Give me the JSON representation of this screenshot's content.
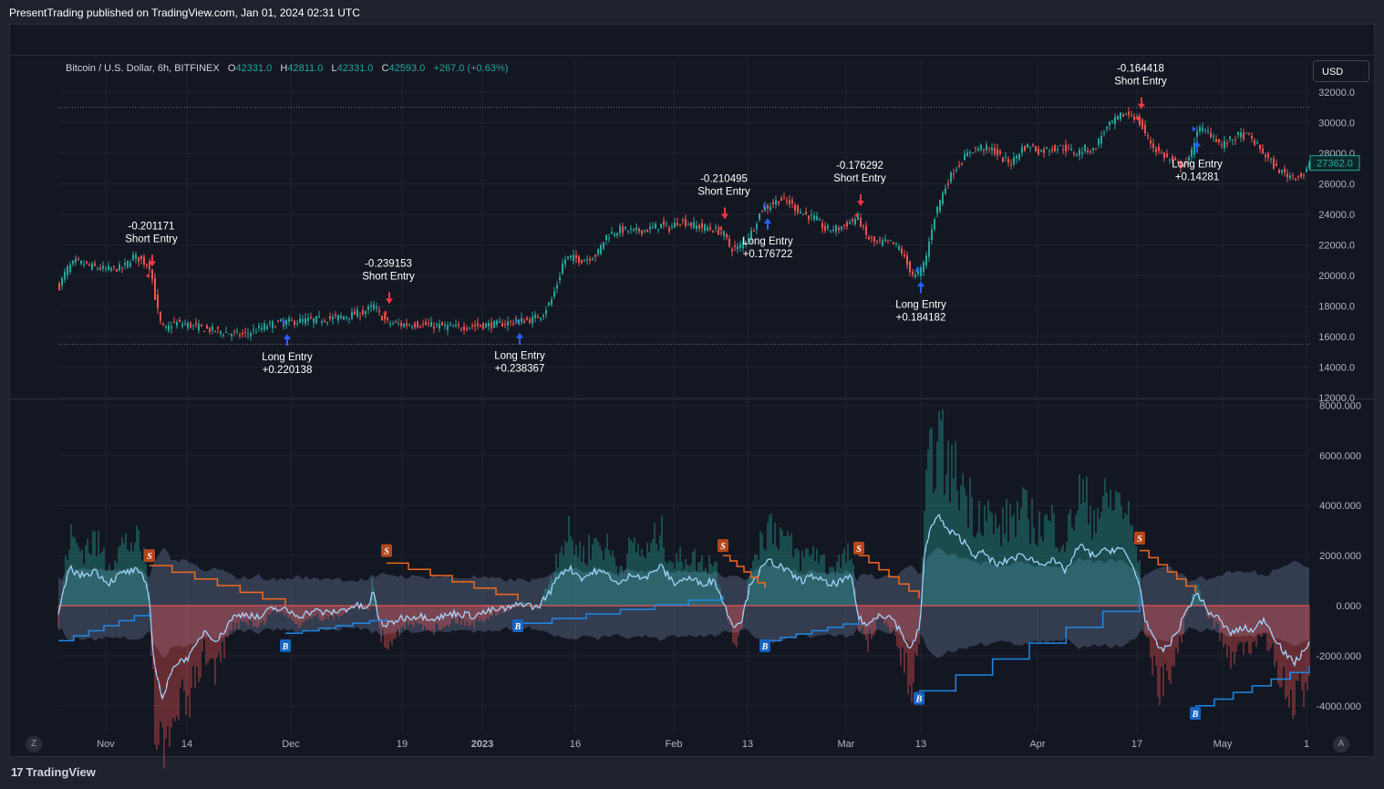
{
  "header": {
    "publish_line": "PresentTrading published on TradingView.com, Jan 01, 2024 02:31 UTC"
  },
  "legend": {
    "symbol": "Bitcoin / U.S. Dollar, 6h, BITFINEX",
    "open_label": "O",
    "open": "42331.0",
    "high_label": "H",
    "high": "42811.0",
    "low_label": "L",
    "low": "42331.0",
    "close_label": "C",
    "close": "42593.0",
    "change": "+267.0 (+0.63%)"
  },
  "currency_button": "USD",
  "footer": {
    "logo_text": "TradingView",
    "zoom_button": "Z",
    "auto_button": "A"
  },
  "colors": {
    "background": "#131722",
    "up": "#26a69a",
    "down": "#ef5350",
    "long_arrow": "#2962ff",
    "short_arrow": "#f23645",
    "price_tag": "#26a69a",
    "oscillator_line": "#a3d0f5",
    "negative_line": "#ffcc80",
    "upper_trail": "#f06a1e",
    "lower_trail": "#1e88e5"
  },
  "chart_data": [
    {
      "type": "candlestick",
      "title": "Bitcoin / U.S. Dollar, 6h, BITFINEX",
      "x_tick_labels": [
        "Nov",
        "14",
        "Dec",
        "19",
        "2023",
        "16",
        "Feb",
        "13",
        "Mar",
        "13",
        "Apr",
        "17",
        "May",
        "1"
      ],
      "y_tick_labels": [
        "32000.0",
        "30000.0",
        "28000.0",
        "26000.0",
        "24000.0",
        "22000.0",
        "20000.0",
        "18000.0",
        "16000.0",
        "14000.0",
        "12000.0"
      ],
      "ylim": [
        12000,
        33000
      ],
      "last_price_label": "27362.0",
      "price_path": [
        [
          0,
          19300
        ],
        [
          8,
          20400
        ],
        [
          18,
          20900
        ],
        [
          35,
          20600
        ],
        [
          50,
          20400
        ],
        [
          70,
          20500
        ],
        [
          82,
          21300
        ],
        [
          92,
          20900
        ],
        [
          100,
          20600
        ],
        [
          104,
          18900
        ],
        [
          110,
          17000
        ],
        [
          116,
          16400
        ],
        [
          125,
          16900
        ],
        [
          140,
          16800
        ],
        [
          160,
          16500
        ],
        [
          180,
          16300
        ],
        [
          200,
          16100
        ],
        [
          215,
          16400
        ],
        [
          228,
          16700
        ],
        [
          240,
          16900
        ],
        [
          260,
          17000
        ],
        [
          280,
          17100
        ],
        [
          300,
          17200
        ],
        [
          318,
          17400
        ],
        [
          334,
          17600
        ],
        [
          345,
          18000
        ],
        [
          352,
          17400
        ],
        [
          360,
          16900
        ],
        [
          375,
          16800
        ],
        [
          395,
          16800
        ],
        [
          415,
          16700
        ],
        [
          435,
          16600
        ],
        [
          455,
          16700
        ],
        [
          480,
          16800
        ],
        [
          500,
          17000
        ],
        [
          518,
          17100
        ],
        [
          530,
          17500
        ],
        [
          540,
          18400
        ],
        [
          548,
          19800
        ],
        [
          553,
          21000
        ],
        [
          560,
          21200
        ],
        [
          575,
          21000
        ],
        [
          590,
          21400
        ],
        [
          600,
          22600
        ],
        [
          615,
          23000
        ],
        [
          630,
          22900
        ],
        [
          645,
          23000
        ],
        [
          660,
          23300
        ],
        [
          670,
          23100
        ],
        [
          680,
          23600
        ],
        [
          690,
          23400
        ],
        [
          700,
          23200
        ],
        [
          712,
          23100
        ],
        [
          728,
          22800
        ],
        [
          736,
          21800
        ],
        [
          745,
          21800
        ],
        [
          752,
          22300
        ],
        [
          760,
          22900
        ],
        [
          770,
          24300
        ],
        [
          780,
          24600
        ],
        [
          790,
          25000
        ],
        [
          800,
          24800
        ],
        [
          810,
          24300
        ],
        [
          818,
          24000
        ],
        [
          830,
          23700
        ],
        [
          840,
          23000
        ],
        [
          855,
          23100
        ],
        [
          868,
          23500
        ],
        [
          876,
          23800
        ],
        [
          886,
          22500
        ],
        [
          896,
          22100
        ],
        [
          910,
          22200
        ],
        [
          922,
          21800
        ],
        [
          930,
          20700
        ],
        [
          938,
          19900
        ],
        [
          946,
          20400
        ],
        [
          952,
          21500
        ],
        [
          958,
          23500
        ],
        [
          965,
          24800
        ],
        [
          972,
          25800
        ],
        [
          980,
          26800
        ],
        [
          990,
          27500
        ],
        [
          1000,
          28200
        ],
        [
          1012,
          28400
        ],
        [
          1025,
          28200
        ],
        [
          1035,
          27600
        ],
        [
          1045,
          27400
        ],
        [
          1055,
          28300
        ],
        [
          1065,
          28500
        ],
        [
          1075,
          28100
        ],
        [
          1085,
          28300
        ],
        [
          1100,
          28400
        ],
        [
          1115,
          28000
        ],
        [
          1125,
          28300
        ],
        [
          1135,
          28200
        ],
        [
          1145,
          29400
        ],
        [
          1155,
          30000
        ],
        [
          1165,
          30500
        ],
        [
          1175,
          30600
        ],
        [
          1183,
          30200
        ],
        [
          1190,
          29400
        ],
        [
          1200,
          28400
        ],
        [
          1210,
          27900
        ],
        [
          1220,
          27500
        ],
        [
          1230,
          27200
        ],
        [
          1240,
          27600
        ],
        [
          1248,
          29600
        ],
        [
          1255,
          29500
        ],
        [
          1265,
          29200
        ],
        [
          1275,
          28500
        ],
        [
          1285,
          28900
        ],
        [
          1295,
          29200
        ],
        [
          1305,
          29100
        ],
        [
          1315,
          28400
        ],
        [
          1325,
          27700
        ],
        [
          1335,
          27000
        ],
        [
          1345,
          26600
        ],
        [
          1355,
          26500
        ],
        [
          1365,
          26600
        ],
        [
          1372,
          27300
        ]
      ],
      "annotations": [
        {
          "type": "short",
          "date_label": "Nov 08",
          "value": "-0.201171",
          "label": "Short Entry"
        },
        {
          "type": "long",
          "date_label": "Dec 01",
          "value": "+0.220138",
          "label": "Long Entry"
        },
        {
          "type": "short",
          "date_label": "Dec 16",
          "value": "-0.239153",
          "label": "Short Entry"
        },
        {
          "type": "long",
          "date_label": "Jan 08",
          "value": "+0.238367",
          "label": "Long Entry"
        },
        {
          "type": "short",
          "date_label": "Feb 09",
          "value": "-0.210495",
          "label": "Short Entry"
        },
        {
          "type": "long",
          "date_label": "Feb 14",
          "value": "+0.176722",
          "label": "Long Entry"
        },
        {
          "type": "short",
          "date_label": "Mar 02",
          "value": "-0.176292",
          "label": "Short Entry"
        },
        {
          "type": "long",
          "date_label": "Mar 12",
          "value": "+0.184182",
          "label": "Long Entry"
        },
        {
          "type": "short",
          "date_label": "Apr 18",
          "value": "-0.164418",
          "label": "Short Entry"
        },
        {
          "type": "long",
          "date_label": "Apr 24",
          "value": "+0.14281",
          "label": "Long Entry"
        }
      ],
      "range_bounds": [
        31000,
        15500
      ]
    },
    {
      "type": "area",
      "y_tick_labels": [
        "8000.000",
        "6000.000",
        "4000.000",
        "2000.000",
        "0.000",
        "-2000.000",
        "-4000.000"
      ],
      "ylim": [
        -5000,
        8000
      ],
      "signal_badges": [
        {
          "kind": "S",
          "date_label": "Nov 08",
          "value": 2000
        },
        {
          "kind": "B",
          "date_label": "Dec 01",
          "value": -1600
        },
        {
          "kind": "S",
          "date_label": "Dec 16",
          "value": 2200
        },
        {
          "kind": "B",
          "date_label": "Jan 08",
          "value": -800
        },
        {
          "kind": "S",
          "date_label": "Feb 09",
          "value": 2400
        },
        {
          "kind": "B",
          "date_label": "Feb 14",
          "value": -1600
        },
        {
          "kind": "S",
          "date_label": "Mar 02",
          "value": 2300
        },
        {
          "kind": "B",
          "date_label": "Mar 12",
          "value": -3700
        },
        {
          "kind": "S",
          "date_label": "Apr 18",
          "value": 2700
        },
        {
          "kind": "B",
          "date_label": "Apr 24",
          "value": -4300
        }
      ],
      "oscillator": [
        [
          0,
          -400
        ],
        [
          12,
          1500
        ],
        [
          25,
          1200
        ],
        [
          40,
          1400
        ],
        [
          55,
          900
        ],
        [
          70,
          1300
        ],
        [
          85,
          1400
        ],
        [
          95,
          1000
        ],
        [
          100,
          300
        ],
        [
          103,
          -1600
        ],
        [
          108,
          -2800
        ],
        [
          115,
          -3800
        ],
        [
          125,
          -2400
        ],
        [
          135,
          -2200
        ],
        [
          145,
          -2000
        ],
        [
          160,
          -1000
        ],
        [
          175,
          -1400
        ],
        [
          190,
          -500
        ],
        [
          205,
          -300
        ],
        [
          220,
          -500
        ],
        [
          235,
          -100
        ],
        [
          250,
          -200
        ],
        [
          265,
          -400
        ],
        [
          280,
          -200
        ],
        [
          295,
          -300
        ],
        [
          310,
          -200
        ],
        [
          325,
          0
        ],
        [
          340,
          -100
        ],
        [
          345,
          600
        ],
        [
          352,
          -600
        ],
        [
          360,
          -800
        ],
        [
          375,
          -500
        ],
        [
          395,
          -400
        ],
        [
          415,
          -500
        ],
        [
          435,
          -300
        ],
        [
          455,
          -400
        ],
        [
          475,
          -200
        ],
        [
          495,
          -100
        ],
        [
          510,
          100
        ],
        [
          525,
          -100
        ],
        [
          540,
          600
        ],
        [
          550,
          1300
        ],
        [
          560,
          1500
        ],
        [
          575,
          1100
        ],
        [
          590,
          1400
        ],
        [
          605,
          1200
        ],
        [
          615,
          800
        ],
        [
          630,
          1300
        ],
        [
          645,
          1100
        ],
        [
          660,
          1600
        ],
        [
          675,
          900
        ],
        [
          690,
          1100
        ],
        [
          705,
          900
        ],
        [
          720,
          1000
        ],
        [
          735,
          -400
        ],
        [
          742,
          -800
        ],
        [
          750,
          -500
        ],
        [
          760,
          1000
        ],
        [
          770,
          1400
        ],
        [
          780,
          1800
        ],
        [
          795,
          1500
        ],
        [
          805,
          1200
        ],
        [
          815,
          1000
        ],
        [
          830,
          1200
        ],
        [
          845,
          800
        ],
        [
          860,
          1000
        ],
        [
          870,
          1100
        ],
        [
          878,
          -500
        ],
        [
          888,
          -800
        ],
        [
          900,
          -300
        ],
        [
          915,
          -500
        ],
        [
          925,
          -1100
        ],
        [
          935,
          -1800
        ],
        [
          945,
          -800
        ],
        [
          950,
          2000
        ],
        [
          958,
          3300
        ],
        [
          965,
          3600
        ],
        [
          975,
          3000
        ],
        [
          985,
          2800
        ],
        [
          995,
          2500
        ],
        [
          1005,
          2000
        ],
        [
          1015,
          2100
        ],
        [
          1030,
          1600
        ],
        [
          1045,
          1900
        ],
        [
          1060,
          2000
        ],
        [
          1075,
          1700
        ],
        [
          1090,
          1800
        ],
        [
          1105,
          1400
        ],
        [
          1120,
          2400
        ],
        [
          1135,
          2000
        ],
        [
          1150,
          2200
        ],
        [
          1165,
          2300
        ],
        [
          1175,
          1800
        ],
        [
          1185,
          1000
        ],
        [
          1192,
          -500
        ],
        [
          1200,
          -1300
        ],
        [
          1210,
          -1800
        ],
        [
          1220,
          -1500
        ],
        [
          1230,
          -800
        ],
        [
          1240,
          0
        ],
        [
          1250,
          500
        ],
        [
          1260,
          -200
        ],
        [
          1272,
          -500
        ],
        [
          1285,
          -1100
        ],
        [
          1300,
          -900
        ],
        [
          1312,
          -1000
        ],
        [
          1322,
          -500
        ],
        [
          1335,
          -1300
        ],
        [
          1345,
          -1900
        ],
        [
          1355,
          -2300
        ],
        [
          1365,
          -1900
        ],
        [
          1372,
          -1400
        ]
      ]
    }
  ]
}
